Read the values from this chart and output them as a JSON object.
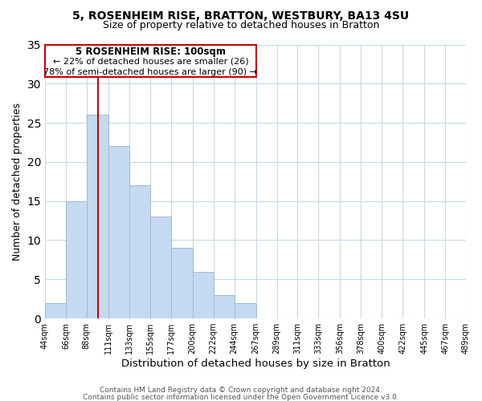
{
  "title1": "5, ROSENHEIM RISE, BRATTON, WESTBURY, BA13 4SU",
  "title2": "Size of property relative to detached houses in Bratton",
  "xlabel": "Distribution of detached houses by size in Bratton",
  "ylabel": "Number of detached properties",
  "bar_color": "#c5d9f1",
  "bar_edge_color": "#a0b8d8",
  "grid_color": "#c8d8ea",
  "bin_edges": [
    44,
    66,
    88,
    111,
    133,
    155,
    177,
    200,
    222,
    244,
    267,
    289,
    311,
    333,
    356,
    378,
    400,
    422,
    445,
    467,
    489
  ],
  "bin_labels": [
    "44sqm",
    "66sqm",
    "88sqm",
    "111sqm",
    "133sqm",
    "155sqm",
    "177sqm",
    "200sqm",
    "222sqm",
    "244sqm",
    "267sqm",
    "289sqm",
    "311sqm",
    "333sqm",
    "356sqm",
    "378sqm",
    "400sqm",
    "422sqm",
    "445sqm",
    "467sqm",
    "489sqm"
  ],
  "counts": [
    2,
    15,
    26,
    22,
    17,
    13,
    9,
    6,
    3,
    2,
    0,
    0,
    0,
    0,
    0,
    0,
    0,
    0,
    0,
    0
  ],
  "vline_x": 100,
  "vline_color": "#cc0000",
  "annotation_text_line1": "5 ROSENHEIM RISE: 100sqm",
  "annotation_text_line2": "← 22% of detached houses are smaller (26)",
  "annotation_text_line3": "78% of semi-detached houses are larger (90) →",
  "ylim": [
    0,
    35
  ],
  "yticks": [
    0,
    5,
    10,
    15,
    20,
    25,
    30,
    35
  ],
  "footer1": "Contains HM Land Registry data © Crown copyright and database right 2024.",
  "footer2": "Contains public sector information licensed under the Open Government Licence v3.0."
}
